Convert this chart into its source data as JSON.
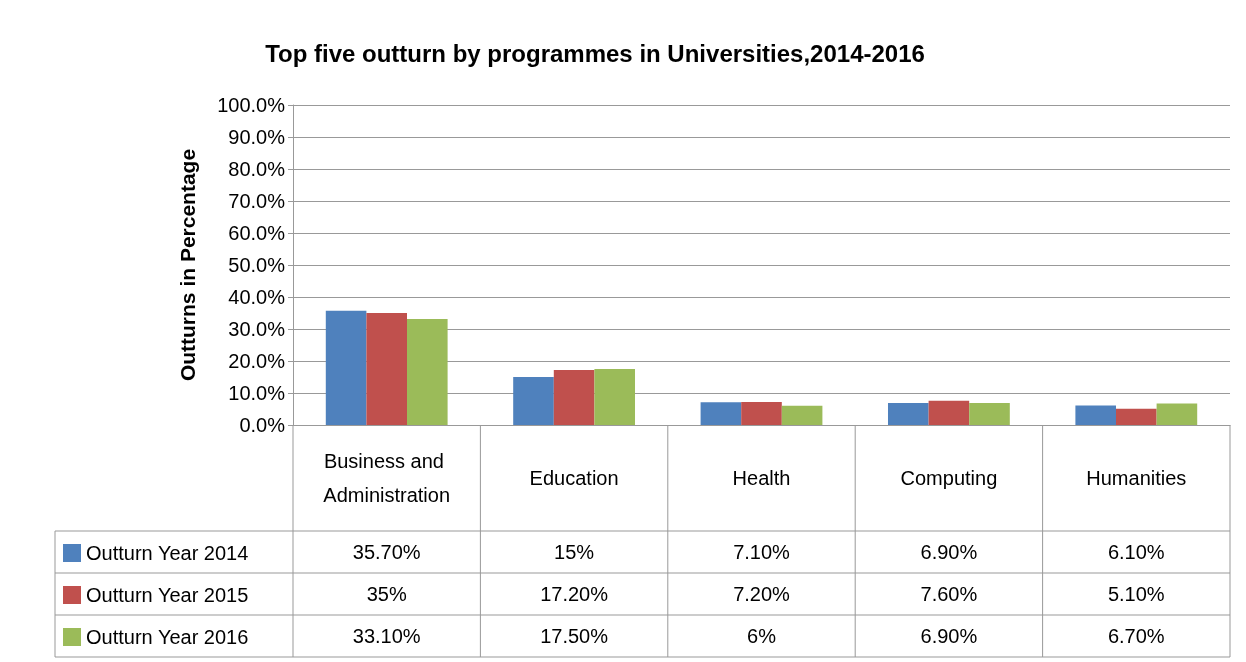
{
  "chart_data": {
    "type": "bar",
    "title": "Top five outturn by programmes in Universities,2014-2016",
    "ylabel": "Outturns in Percentage",
    "categories": [
      "Business and Administration",
      "Education",
      "Health",
      "Computing",
      "Humanities"
    ],
    "series": [
      {
        "name": "Outturn Year 2014",
        "color": "#4f81bd",
        "values": [
          35.7,
          15,
          7.1,
          6.9,
          6.1
        ],
        "value_labels": [
          "35.70%",
          "15%",
          "7.10%",
          "6.90%",
          "6.10%"
        ]
      },
      {
        "name": "Outturn Year 2015",
        "color": "#c0504d",
        "values": [
          35,
          17.2,
          7.2,
          7.6,
          5.1
        ],
        "value_labels": [
          "35%",
          "17.20%",
          "7.20%",
          "7.60%",
          "5.10%"
        ]
      },
      {
        "name": "Outturn Year 2016",
        "color": "#9bbb59",
        "values": [
          33.1,
          17.5,
          6,
          6.9,
          6.7
        ],
        "value_labels": [
          "33.10%",
          "17.50%",
          "6%",
          "6.90%",
          "6.70%"
        ]
      }
    ],
    "ylim": [
      0,
      100
    ],
    "yticks": [
      {
        "value": 0,
        "label": "0.0%"
      },
      {
        "value": 10,
        "label": "10.0%"
      },
      {
        "value": 20,
        "label": "20.0%"
      },
      {
        "value": 30,
        "label": "30.0%"
      },
      {
        "value": 40,
        "label": "40.0%"
      },
      {
        "value": 50,
        "label": "50.0%"
      },
      {
        "value": 60,
        "label": "60.0%"
      },
      {
        "value": 70,
        "label": "70.0%"
      },
      {
        "value": 80,
        "label": "80.0%"
      },
      {
        "value": 90,
        "label": "90.0%"
      },
      {
        "value": 100,
        "label": "100.0%"
      }
    ],
    "grid": "y",
    "legend": "bottom left"
  }
}
